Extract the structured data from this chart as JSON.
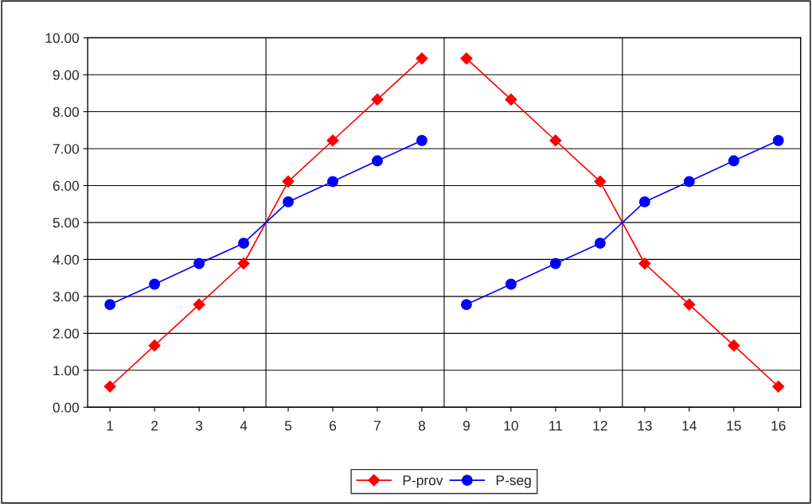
{
  "chart_data": {
    "type": "line",
    "categories": [
      "1",
      "2",
      "3",
      "4",
      "5",
      "6",
      "7",
      "8",
      "9",
      "10",
      "11",
      "12",
      "13",
      "14",
      "15",
      "16"
    ],
    "series": [
      {
        "name": "P-prov",
        "color": "#ff0000",
        "marker": "diamond",
        "x": [
          "1",
          "2",
          "3",
          "4",
          "5",
          "6",
          "7",
          "8"
        ],
        "values": [
          0.56,
          1.67,
          2.78,
          3.89,
          6.11,
          7.22,
          8.33,
          9.44
        ]
      },
      {
        "name": "P-seg",
        "color": "#0000ff",
        "marker": "circle",
        "x": [
          "1",
          "2",
          "3",
          "4",
          "5",
          "6",
          "7",
          "8"
        ],
        "values": [
          2.78,
          3.33,
          3.89,
          4.44,
          5.56,
          6.11,
          6.67,
          7.22
        ]
      },
      {
        "color": "#ff0000",
        "marker": "diamond",
        "x": [
          "9",
          "10",
          "11",
          "12",
          "13",
          "14",
          "15",
          "16"
        ],
        "values": [
          9.44,
          8.33,
          7.22,
          6.11,
          3.89,
          2.78,
          1.67,
          0.56
        ]
      },
      {
        "color": "#0000ff",
        "marker": "circle",
        "x": [
          "9",
          "10",
          "11",
          "12",
          "13",
          "14",
          "15",
          "16"
        ],
        "values": [
          2.78,
          3.33,
          3.89,
          4.44,
          5.56,
          6.11,
          6.67,
          7.22
        ]
      }
    ],
    "ylim": [
      0,
      10
    ],
    "yticks": [
      {
        "value": 0,
        "label": "0.00"
      },
      {
        "value": 1,
        "label": "1.00"
      },
      {
        "value": 2,
        "label": "2.00"
      },
      {
        "value": 3,
        "label": "3.00"
      },
      {
        "value": 4,
        "label": "4.00"
      },
      {
        "value": 5,
        "label": "5.00"
      },
      {
        "value": 6,
        "label": "6.00"
      },
      {
        "value": 7,
        "label": "7.00"
      },
      {
        "value": 8,
        "label": "8.00"
      },
      {
        "value": 9,
        "label": "9.00"
      },
      {
        "value": 10,
        "label": "10.00"
      }
    ],
    "grid": true,
    "legend": "bottom",
    "line_style": "solid"
  }
}
